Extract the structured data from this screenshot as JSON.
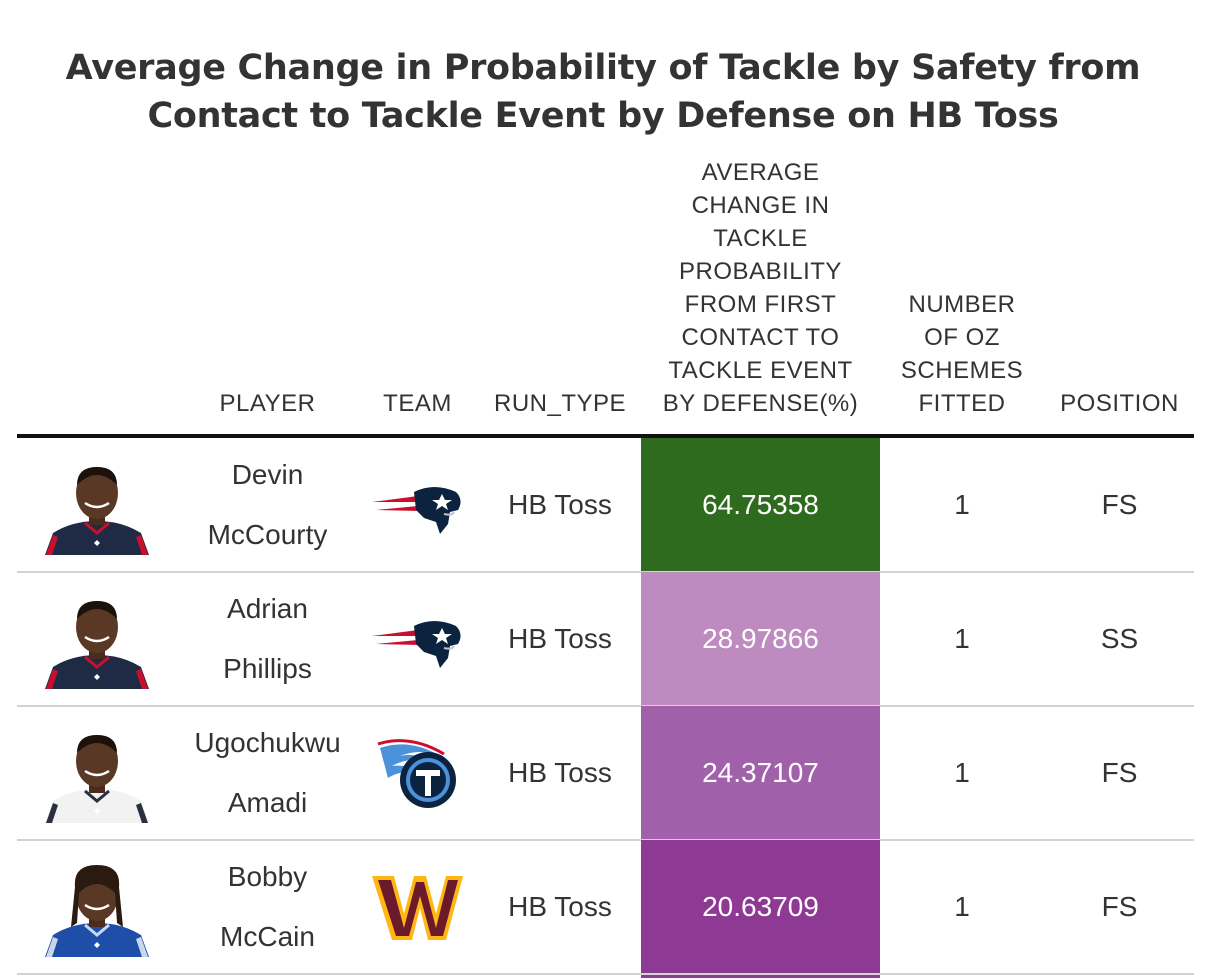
{
  "chart_data": {
    "type": "table",
    "title_lines": [
      "Average Change in Probability of Tackle by Safety from",
      "Contact to Tackle Event by Defense on HB Toss"
    ],
    "columns": [
      {
        "key": "headshot",
        "lines": []
      },
      {
        "key": "player",
        "lines": [
          "PLAYER"
        ]
      },
      {
        "key": "team",
        "lines": [
          "TEAM"
        ]
      },
      {
        "key": "run_type",
        "lines": [
          "RUN_TYPE"
        ]
      },
      {
        "key": "avg_change",
        "lines": [
          "AVERAGE",
          "CHANGE IN",
          "TACKLE",
          "PROBABILITY",
          "FROM FIRST",
          "CONTACT TO",
          "TACKLE EVENT",
          "BY DEFENSE(%)"
        ]
      },
      {
        "key": "schemes",
        "lines": [
          "NUMBER",
          "OF OZ",
          "SCHEMES",
          "FITTED"
        ]
      },
      {
        "key": "position",
        "lines": [
          "POSITION"
        ]
      }
    ],
    "rows": [
      {
        "player_lines": [
          "Devin",
          "McCourty"
        ],
        "team_logo": "new-england-patriots-logo",
        "run_type": "HB Toss",
        "avg_change": "64.75358",
        "schemes": "1",
        "position": "FS",
        "heat_color": "#2e6b1e",
        "jersey": "patriots"
      },
      {
        "player_lines": [
          "Adrian",
          "Phillips"
        ],
        "team_logo": "new-england-patriots-logo",
        "run_type": "HB Toss",
        "avg_change": "28.97866",
        "schemes": "1",
        "position": "SS",
        "heat_color": "#bd8bc0",
        "jersey": "patriots"
      },
      {
        "player_lines": [
          "Ugochukwu",
          "Amadi"
        ],
        "team_logo": "tennessee-titans-logo",
        "run_type": "HB Toss",
        "avg_change": "24.37107",
        "schemes": "1",
        "position": "FS",
        "heat_color": "#a160aa",
        "jersey": "titans"
      },
      {
        "player_lines": [
          "Bobby",
          "McCain"
        ],
        "team_logo": "washington-commanders-logo",
        "run_type": "HB Toss",
        "avg_change": "20.63709",
        "schemes": "1",
        "position": "FS",
        "heat_color": "#8e3a95",
        "jersey": "giants"
      }
    ],
    "partial_row_heat_color": "#8e3a95"
  }
}
